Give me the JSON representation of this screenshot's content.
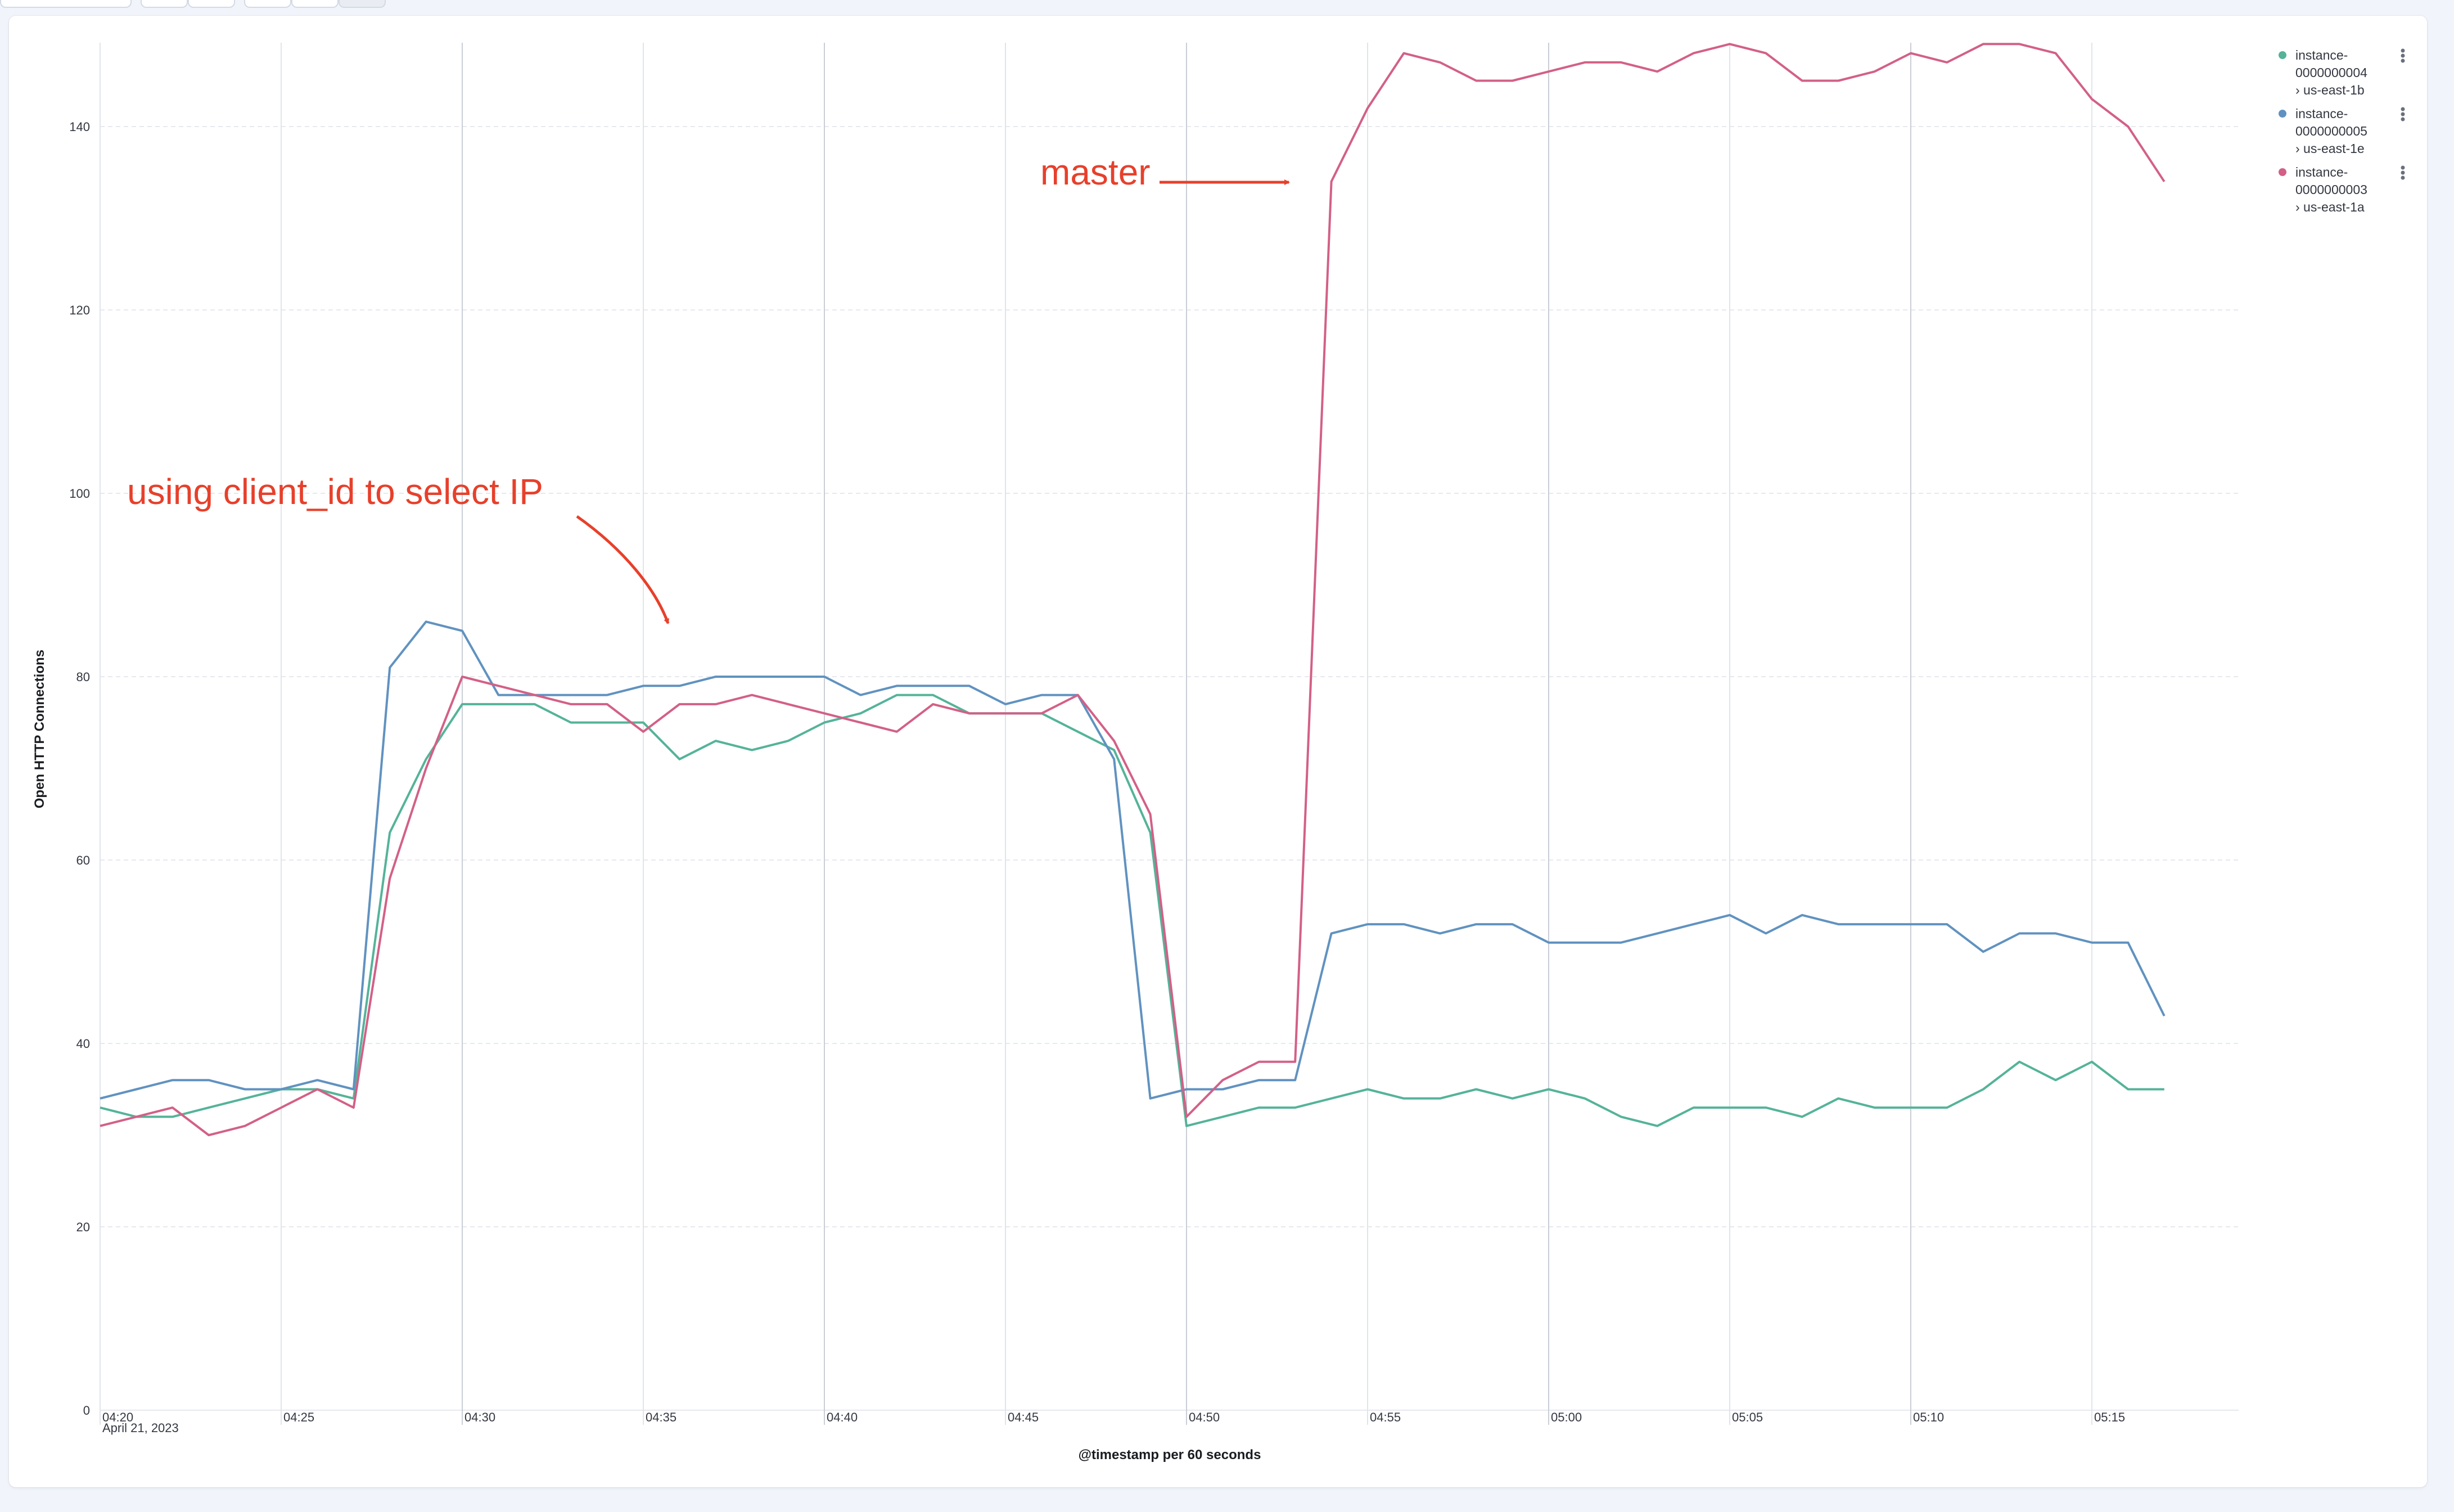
{
  "chart_data": {
    "type": "line",
    "xlabel": "@timestamp per 60 seconds",
    "ylabel": "Open HTTP Connections",
    "ylim": [
      0,
      150
    ],
    "xlim": [
      "04:20",
      "05:22"
    ],
    "y_ticks": [
      0,
      20,
      40,
      60,
      80,
      100,
      120,
      140
    ],
    "x_ticks": [
      "04:20",
      "04:25",
      "04:30",
      "04:35",
      "04:40",
      "04:45",
      "04:50",
      "04:55",
      "05:00",
      "05:05",
      "05:10",
      "05:15"
    ],
    "x_tick_sublabel": "April 21, 2023",
    "grid": true,
    "legend_position": "right",
    "x": [
      "04:20",
      "04:21",
      "04:22",
      "04:23",
      "04:24",
      "04:25",
      "04:26",
      "04:27",
      "04:28",
      "04:29",
      "04:30",
      "04:31",
      "04:32",
      "04:33",
      "04:34",
      "04:35",
      "04:36",
      "04:37",
      "04:38",
      "04:39",
      "04:40",
      "04:41",
      "04:42",
      "04:43",
      "04:44",
      "04:45",
      "04:46",
      "04:47",
      "04:48",
      "04:49",
      "04:50",
      "04:51",
      "04:52",
      "04:53",
      "04:54",
      "04:55",
      "04:56",
      "04:57",
      "04:58",
      "04:59",
      "05:00",
      "05:01",
      "05:02",
      "05:03",
      "05:04",
      "05:05",
      "05:06",
      "05:07",
      "05:08",
      "05:09",
      "05:10",
      "05:11",
      "05:12",
      "05:13",
      "05:14",
      "05:15",
      "05:16",
      "05:17"
    ],
    "series": [
      {
        "name_line1": "instance-",
        "name_line2": "0000000004",
        "name_line3": "› us-east-1b",
        "color": "#54b399",
        "values": [
          33,
          32,
          32,
          33,
          34,
          35,
          35,
          34,
          63,
          71,
          77,
          77,
          77,
          75,
          75,
          75,
          71,
          73,
          72,
          73,
          75,
          76,
          78,
          78,
          76,
          76,
          76,
          74,
          72,
          63,
          31,
          32,
          33,
          33,
          34,
          35,
          34,
          34,
          35,
          34,
          35,
          34,
          32,
          31,
          33,
          33,
          33,
          32,
          34,
          33,
          33,
          33,
          35,
          38,
          36,
          38,
          35,
          35
        ]
      },
      {
        "name_line1": "instance-",
        "name_line2": "0000000005",
        "name_line3": "› us-east-1e",
        "color": "#6092c0",
        "values": [
          34,
          35,
          36,
          36,
          35,
          35,
          36,
          35,
          81,
          86,
          85,
          78,
          78,
          78,
          78,
          79,
          79,
          80,
          80,
          80,
          80,
          78,
          79,
          79,
          79,
          77,
          78,
          78,
          71,
          34,
          35,
          35,
          36,
          36,
          52,
          53,
          53,
          52,
          53,
          53,
          51,
          51,
          51,
          52,
          53,
          54,
          52,
          54,
          53,
          53,
          53,
          53,
          50,
          52,
          52,
          51,
          51,
          43
        ]
      },
      {
        "name_line1": "instance-",
        "name_line2": "0000000003",
        "name_line3": "› us-east-1a",
        "color": "#d36086",
        "values": [
          31,
          32,
          33,
          30,
          31,
          33,
          35,
          33,
          58,
          70,
          80,
          79,
          78,
          77,
          77,
          74,
          77,
          77,
          78,
          77,
          76,
          75,
          74,
          77,
          76,
          76,
          76,
          78,
          73,
          65,
          32,
          36,
          38,
          38,
          134,
          142,
          148,
          147,
          145,
          145,
          146,
          147,
          147,
          146,
          148,
          149,
          148,
          145,
          145,
          146,
          148,
          147,
          149,
          149,
          148,
          143,
          140,
          134
        ]
      }
    ],
    "annotations": [
      {
        "text": "using client_id to select IP",
        "points_to": "04:35"
      },
      {
        "text": "master",
        "points_to": "04:53"
      }
    ]
  },
  "legend_menu_icon": "vertical-dots-icon"
}
